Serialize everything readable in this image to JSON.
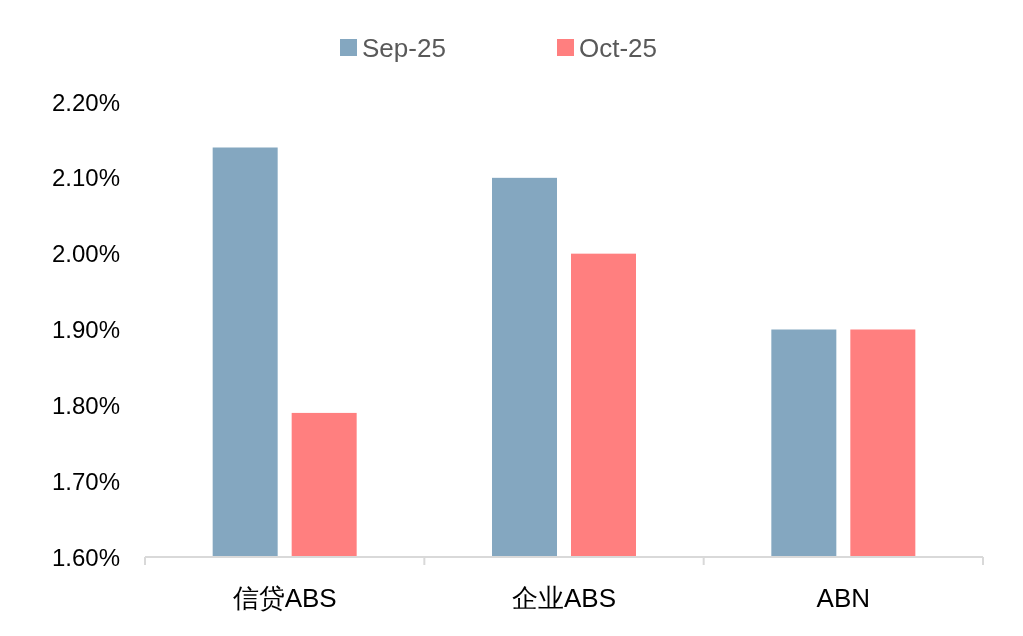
{
  "chart_data": {
    "type": "bar",
    "categories": [
      "信贷ABS",
      "企业ABS",
      "ABN"
    ],
    "series": [
      {
        "name": "Sep-25",
        "color": "#84a7c0",
        "values": [
          2.14,
          2.1,
          1.9
        ]
      },
      {
        "name": "Oct-25",
        "color": "#ff7f7f",
        "values": [
          1.79,
          2.0,
          1.9
        ]
      }
    ],
    "ylim": [
      1.6,
      2.2
    ],
    "yticks": [
      {
        "value": 1.6,
        "label": "1.60%"
      },
      {
        "value": 1.7,
        "label": "1.70%"
      },
      {
        "value": 1.8,
        "label": "1.80%"
      },
      {
        "value": 1.9,
        "label": "1.90%"
      },
      {
        "value": 2.0,
        "label": "2.00%"
      },
      {
        "value": 2.1,
        "label": "2.10%"
      },
      {
        "value": 2.2,
        "label": "2.20%"
      }
    ],
    "grid": false,
    "legend": "top"
  }
}
